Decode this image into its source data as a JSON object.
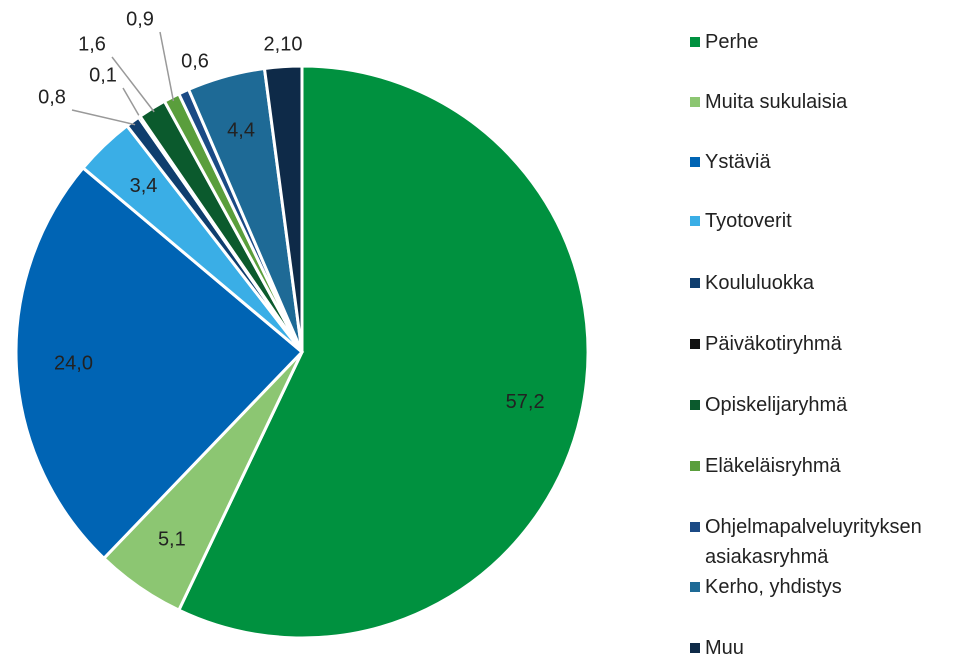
{
  "chart_data": {
    "type": "pie",
    "categories": [
      "Perhe",
      "Muita sukulaisia",
      "Ystäviä",
      "Tyotoverit",
      "Koululuokka",
      "Päiväkotiryhmä",
      "Opiskelijaryhmä",
      "Eläkeläisryhmä",
      "Ohjelmapalveluyrityksen asiakasryhmä",
      "Kerho, yhdistys",
      "Muu"
    ],
    "values": [
      57.2,
      5.1,
      24.0,
      3.4,
      0.8,
      0.1,
      1.6,
      0.9,
      0.6,
      4.4,
      2.1
    ],
    "value_labels": [
      "57,2",
      "5,1",
      "24,0",
      "3,4",
      "0,8",
      "0,1",
      "1,6",
      "0,9",
      "0,6",
      "4,4",
      "2,10"
    ],
    "colors": [
      "#00913f",
      "#8cc672",
      "#0064b4",
      "#3aaee6",
      "#0f3e6e",
      "#111111",
      "#0b5a2d",
      "#5a9e3c",
      "#1b4a85",
      "#1e6a96",
      "#0e2a48"
    ],
    "legend": "right"
  }
}
